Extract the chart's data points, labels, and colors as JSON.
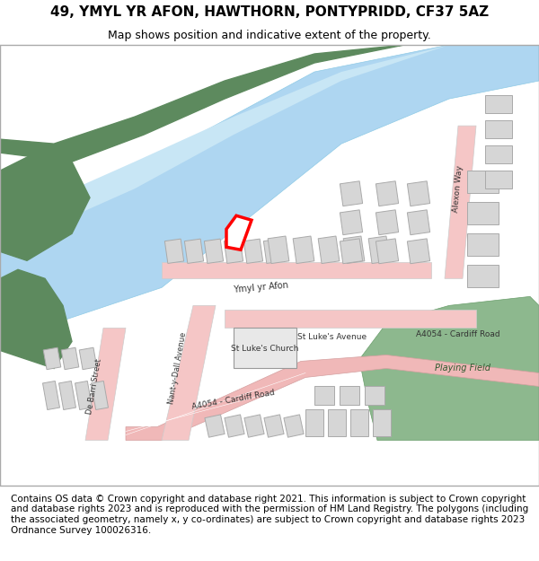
{
  "title": "49, YMYL YR AFON, HAWTHORN, PONTYPRIDD, CF37 5AZ",
  "subtitle": "Map shows position and indicative extent of the property.",
  "footer": "Contains OS data © Crown copyright and database right 2021. This information is subject to Crown copyright and database rights 2023 and is reproduced with the permission of HM Land Registry. The polygons (including the associated geometry, namely x, y co-ordinates) are subject to Crown copyright and database rights 2023 Ordnance Survey 100026316.",
  "bg_color": "#f5f5f0",
  "map_bg": "#ffffff",
  "road_color": "#f5c6c6",
  "road_outline": "#e8a0a0",
  "main_road_color": "#f5c6c6",
  "river_color": "#aed6f1",
  "river_outline": "#85c1e9",
  "green_color": "#5d8a5e",
  "green_light": "#8db88e",
  "building_color": "#d6d6d6",
  "building_outline": "#aaaaaa",
  "highlight_color": "#ff0000",
  "text_color": "#333333",
  "title_fontsize": 11,
  "subtitle_fontsize": 9,
  "footer_fontsize": 7.5
}
